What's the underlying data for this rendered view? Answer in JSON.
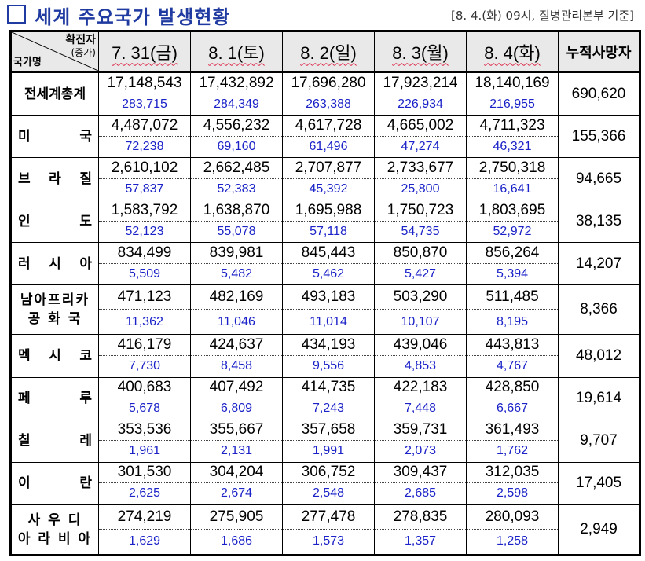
{
  "header": {
    "title": "세계 주요국가 발생현황",
    "meta": "[8. 4.(화) 09시, 질병관리본부 기준]"
  },
  "table": {
    "corner": {
      "top": "확진자",
      "top_sub": "(증가)",
      "bottom": "국가명"
    },
    "dates": [
      "7. 31(금)",
      "8. 1(토)",
      "8. 2(일)",
      "8. 3(월)",
      "8. 4(화)"
    ],
    "cumulative_deaths_label": "누적사망자",
    "rows": [
      {
        "country": "전세계총계",
        "totals": [
          "17,148,543",
          "17,432,892",
          "17,696,280",
          "17,923,214",
          "18,140,169"
        ],
        "new": [
          "283,715",
          "284,349",
          "263,388",
          "226,934",
          "216,955"
        ],
        "deaths": "690,620"
      },
      {
        "country": "미 국",
        "totals": [
          "4,487,072",
          "4,556,232",
          "4,617,728",
          "4,665,002",
          "4,711,323"
        ],
        "new": [
          "72,238",
          "69,160",
          "61,496",
          "47,274",
          "46,321"
        ],
        "deaths": "155,366"
      },
      {
        "country": "브 라 질",
        "totals": [
          "2,610,102",
          "2,662,485",
          "2,707,877",
          "2,733,677",
          "2,750,318"
        ],
        "new": [
          "57,837",
          "52,383",
          "45,392",
          "25,800",
          "16,641"
        ],
        "deaths": "94,665"
      },
      {
        "country": "인 도",
        "totals": [
          "1,583,792",
          "1,638,870",
          "1,695,988",
          "1,750,723",
          "1,803,695"
        ],
        "new": [
          "52,123",
          "55,078",
          "57,118",
          "54,735",
          "52,972"
        ],
        "deaths": "38,135"
      },
      {
        "country": "러 시 아",
        "totals": [
          "834,499",
          "839,981",
          "845,443",
          "850,870",
          "856,264"
        ],
        "new": [
          "5,509",
          "5,482",
          "5,462",
          "5,427",
          "5,394"
        ],
        "deaths": "14,207"
      },
      {
        "country": "남아프리카 공 화 국",
        "line1": "남아프리카",
        "line2": "공 화 국",
        "totals": [
          "471,123",
          "482,169",
          "493,183",
          "503,290",
          "511,485"
        ],
        "new": [
          "11,362",
          "11,046",
          "11,014",
          "10,107",
          "8,195"
        ],
        "deaths": "8,366"
      },
      {
        "country": "멕 시 코",
        "totals": [
          "416,179",
          "424,637",
          "434,193",
          "439,046",
          "443,813"
        ],
        "new": [
          "7,730",
          "8,458",
          "9,556",
          "4,853",
          "4,767"
        ],
        "deaths": "48,012"
      },
      {
        "country": "페 루",
        "totals": [
          "400,683",
          "407,492",
          "414,735",
          "422,183",
          "428,850"
        ],
        "new": [
          "5,678",
          "6,809",
          "7,243",
          "7,448",
          "6,667"
        ],
        "deaths": "19,614"
      },
      {
        "country": "칠 레",
        "totals": [
          "353,536",
          "355,667",
          "357,658",
          "359,731",
          "361,493"
        ],
        "new": [
          "1,961",
          "2,131",
          "1,991",
          "2,073",
          "1,762"
        ],
        "deaths": "9,707"
      },
      {
        "country": "이 란",
        "totals": [
          "301,530",
          "304,204",
          "306,752",
          "309,437",
          "312,035"
        ],
        "new": [
          "2,625",
          "2,674",
          "2,548",
          "2,685",
          "2,598"
        ],
        "deaths": "17,405"
      },
      {
        "country": "사 우 디 아 라 비 아",
        "line1": "사 우 디",
        "line2": "아 라 비 아",
        "totals": [
          "274,219",
          "275,905",
          "277,478",
          "278,835",
          "280,093"
        ],
        "new": [
          "1,629",
          "1,686",
          "1,573",
          "1,357",
          "1,258"
        ],
        "deaths": "2,949"
      }
    ]
  }
}
